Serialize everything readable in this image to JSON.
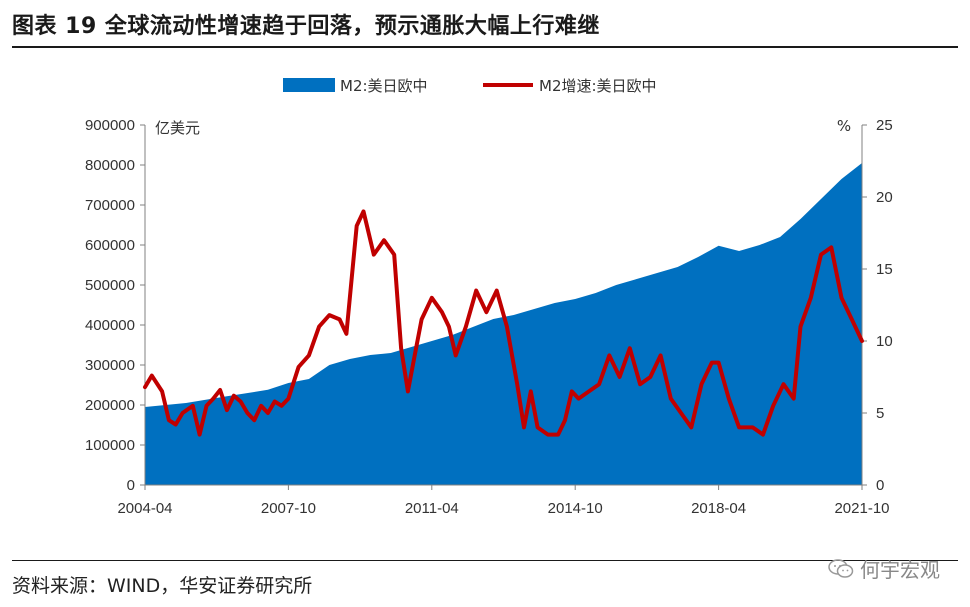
{
  "header": {
    "title": "图表 19 全球流动性增速趋于回落，预示通胀大幅上行难继"
  },
  "footer": {
    "source": "资料来源：WIND，华安证券研究所",
    "watermark": "何宇宏观"
  },
  "colors": {
    "area": "#0070C0",
    "line": "#C00000",
    "axis": "#808080",
    "text": "#333333"
  },
  "icons": {
    "watermark": "wechat-icon"
  },
  "chart_data": {
    "type": "area+line",
    "x_tick_labels": [
      "2004-04",
      "2007-10",
      "2011-04",
      "2014-10",
      "2018-04",
      "2021-10"
    ],
    "x_range": [
      "2004-04",
      "2021-10"
    ],
    "left_axis": {
      "unit": "亿美元",
      "ticks": [
        "0",
        "100000",
        "200000",
        "300000",
        "400000",
        "500000",
        "600000",
        "700000",
        "800000",
        "900000"
      ],
      "ylim": [
        0,
        900000
      ]
    },
    "right_axis": {
      "unit": "%",
      "ticks": [
        "0",
        "5",
        "10",
        "15",
        "20",
        "25"
      ],
      "ylim": [
        0,
        25
      ]
    },
    "legend_position": "top",
    "series": [
      {
        "name": "M2:美日欧中",
        "kind": "area",
        "axis": "left",
        "points": [
          [
            "2004-04",
            195000
          ],
          [
            "2005-04",
            205000
          ],
          [
            "2006-04",
            222000
          ],
          [
            "2007-04",
            238000
          ],
          [
            "2007-10",
            255000
          ],
          [
            "2008-04",
            265000
          ],
          [
            "2008-10",
            300000
          ],
          [
            "2009-04",
            315000
          ],
          [
            "2009-10",
            325000
          ],
          [
            "2010-04",
            330000
          ],
          [
            "2010-10",
            345000
          ],
          [
            "2011-04",
            360000
          ],
          [
            "2011-10",
            375000
          ],
          [
            "2012-04",
            395000
          ],
          [
            "2012-10",
            415000
          ],
          [
            "2013-04",
            425000
          ],
          [
            "2013-10",
            440000
          ],
          [
            "2014-04",
            455000
          ],
          [
            "2014-10",
            465000
          ],
          [
            "2015-04",
            480000
          ],
          [
            "2015-10",
            500000
          ],
          [
            "2016-04",
            515000
          ],
          [
            "2016-10",
            530000
          ],
          [
            "2017-04",
            545000
          ],
          [
            "2017-10",
            570000
          ],
          [
            "2018-04",
            598000
          ],
          [
            "2018-10",
            585000
          ],
          [
            "2019-04",
            600000
          ],
          [
            "2019-10",
            620000
          ],
          [
            "2020-04",
            665000
          ],
          [
            "2020-10",
            715000
          ],
          [
            "2021-04",
            765000
          ],
          [
            "2021-10",
            805000
          ]
        ]
      },
      {
        "name": "M2增速:美日欧中",
        "kind": "line",
        "axis": "right",
        "points": [
          [
            "2004-04",
            6.8
          ],
          [
            "2004-06",
            7.6
          ],
          [
            "2004-09",
            6.5
          ],
          [
            "2004-11",
            4.5
          ],
          [
            "2005-01",
            4.2
          ],
          [
            "2005-03",
            5.0
          ],
          [
            "2005-06",
            5.5
          ],
          [
            "2005-08",
            3.5
          ],
          [
            "2005-10",
            5.5
          ],
          [
            "2005-12",
            6.0
          ],
          [
            "2006-02",
            6.6
          ],
          [
            "2006-04",
            5.2
          ],
          [
            "2006-06",
            6.2
          ],
          [
            "2006-08",
            5.8
          ],
          [
            "2006-10",
            5.0
          ],
          [
            "2006-12",
            4.5
          ],
          [
            "2007-02",
            5.5
          ],
          [
            "2007-04",
            5.0
          ],
          [
            "2007-06",
            5.8
          ],
          [
            "2007-08",
            5.5
          ],
          [
            "2007-10",
            6.0
          ],
          [
            "2008-01",
            8.2
          ],
          [
            "2008-04",
            9.0
          ],
          [
            "2008-07",
            11.0
          ],
          [
            "2008-10",
            11.8
          ],
          [
            "2009-01",
            11.5
          ],
          [
            "2009-03",
            10.5
          ],
          [
            "2009-06",
            18.0
          ],
          [
            "2009-08",
            19.0
          ],
          [
            "2009-11",
            16.0
          ],
          [
            "2010-02",
            17.0
          ],
          [
            "2010-05",
            16.0
          ],
          [
            "2010-07",
            9.5
          ],
          [
            "2010-09",
            6.5
          ],
          [
            "2010-11",
            9.0
          ],
          [
            "2011-01",
            11.5
          ],
          [
            "2011-04",
            13.0
          ],
          [
            "2011-07",
            12.0
          ],
          [
            "2011-09",
            11.0
          ],
          [
            "2011-11",
            9.0
          ],
          [
            "2012-02",
            11.0
          ],
          [
            "2012-05",
            13.5
          ],
          [
            "2012-08",
            12.0
          ],
          [
            "2012-11",
            13.5
          ],
          [
            "2013-02",
            11.0
          ],
          [
            "2013-05",
            7.0
          ],
          [
            "2013-07",
            4.0
          ],
          [
            "2013-09",
            6.5
          ],
          [
            "2013-11",
            4.0
          ],
          [
            "2014-02",
            3.5
          ],
          [
            "2014-05",
            3.5
          ],
          [
            "2014-07",
            4.5
          ],
          [
            "2014-09",
            6.5
          ],
          [
            "2014-11",
            6.0
          ],
          [
            "2015-02",
            6.5
          ],
          [
            "2015-05",
            7.0
          ],
          [
            "2015-08",
            9.0
          ],
          [
            "2015-11",
            7.5
          ],
          [
            "2016-02",
            9.5
          ],
          [
            "2016-05",
            7.0
          ],
          [
            "2016-08",
            7.5
          ],
          [
            "2016-11",
            9.0
          ],
          [
            "2017-02",
            6.0
          ],
          [
            "2017-05",
            5.0
          ],
          [
            "2017-08",
            4.0
          ],
          [
            "2017-11",
            7.0
          ],
          [
            "2018-02",
            8.5
          ],
          [
            "2018-04",
            8.5
          ],
          [
            "2018-07",
            6.0
          ],
          [
            "2018-10",
            4.0
          ],
          [
            "2019-02",
            4.0
          ],
          [
            "2019-05",
            3.5
          ],
          [
            "2019-08",
            5.5
          ],
          [
            "2019-11",
            7.0
          ],
          [
            "2020-02",
            6.0
          ],
          [
            "2020-04",
            11.0
          ],
          [
            "2020-07",
            13.0
          ],
          [
            "2020-10",
            16.0
          ],
          [
            "2021-01",
            16.5
          ],
          [
            "2021-04",
            13.0
          ],
          [
            "2021-07",
            11.5
          ],
          [
            "2021-10",
            10.0
          ]
        ]
      }
    ]
  }
}
